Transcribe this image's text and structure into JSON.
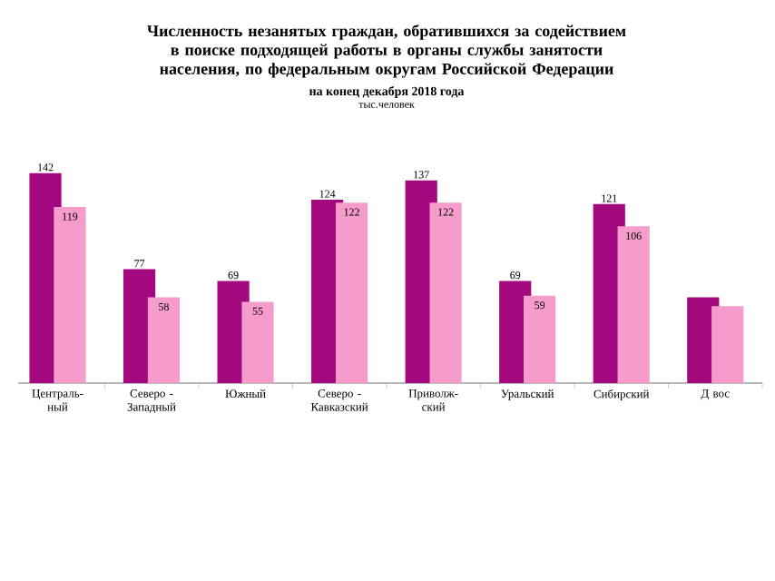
{
  "chart_data": {
    "type": "bar",
    "title": "Численность  незанятых  граждан,  обратившихся  за содействием в поиске подходящей  работы  в органы  службы занятости  населения, по федеральным  округам  Российской  Федерации",
    "subtitle": "на конец декабря 2018 года",
    "annotations": [
      "тыс.человек"
    ],
    "categories": [
      "Централь- ный",
      "Северо - Западный",
      "Южный",
      "Северо - Кавказский",
      "Приволж- ский",
      "Уральский",
      "Сибирский",
      "Д вос"
    ],
    "series": [
      {
        "color": "#a3087e",
        "values": [
          142,
          77,
          69,
          124,
          137,
          69,
          121,
          58
        ],
        "value_labels": [
          "142",
          "77",
          "69",
          "124",
          "137",
          "69",
          "121",
          null
        ]
      },
      {
        "color": "#f59ccc",
        "values": [
          119,
          58,
          55,
          122,
          122,
          59,
          106,
          52
        ],
        "value_labels": [
          "119",
          "58",
          "55",
          "122",
          "122",
          "59",
          "106",
          null
        ]
      }
    ]
  }
}
